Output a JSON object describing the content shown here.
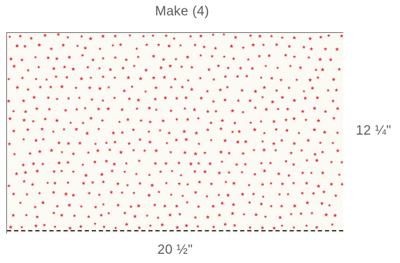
{
  "diagram": {
    "title": "Make (4)",
    "width_label": "20 ½\"",
    "height_label": "12 ¼\""
  },
  "colors": {
    "fabric_background": "#fbfaf5",
    "star_color": "#e8323c",
    "seam_line": "#3a3a3a"
  },
  "icons": {
    "print": "star-print-icon"
  }
}
